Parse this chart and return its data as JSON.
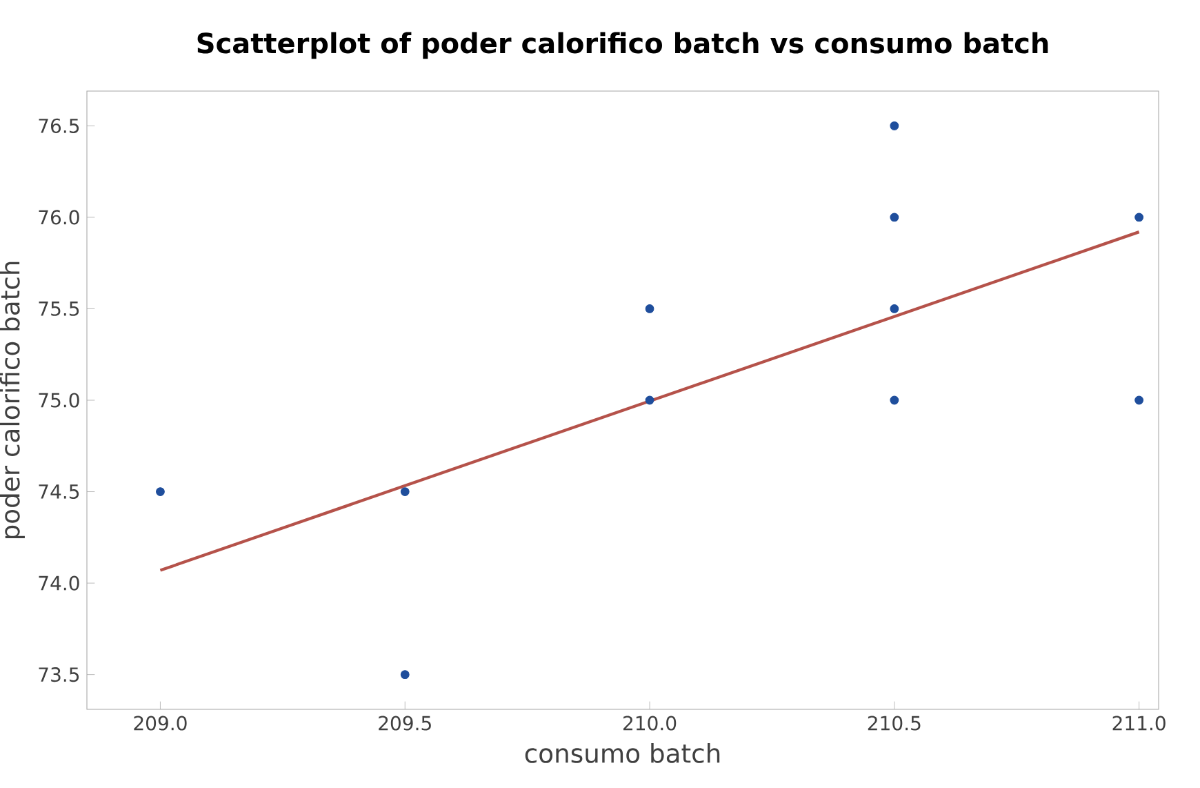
{
  "chart_data": {
    "type": "scatter",
    "title": "Scatterplot of poder calorifico batch vs consumo batch",
    "xlabel": "consumo batch",
    "ylabel": "poder calorifico batch",
    "x": [
      209.0,
      209.5,
      209.5,
      210.0,
      210.0,
      210.5,
      210.5,
      210.5,
      210.5,
      211.0,
      211.0
    ],
    "series": [
      {
        "color": "#1f4e9c",
        "values": [
          74.5,
          74.5,
          73.5,
          75.5,
          75.0,
          76.5,
          76.0,
          75.5,
          75.0,
          76.0,
          75.0
        ]
      },
      {
        "type": "line",
        "marker": "none",
        "color": "#b5524a",
        "x": [
          209.0,
          211.0
        ],
        "values": [
          74.07,
          75.92
        ]
      }
    ],
    "xlim": [
      208.85,
      211.04
    ],
    "ylim": [
      73.31,
      76.69
    ],
    "xticks": [
      {
        "value": 209.0,
        "label": "209.0"
      },
      {
        "value": 209.5,
        "label": "209.5"
      },
      {
        "value": 210.0,
        "label": "210.0"
      },
      {
        "value": 210.5,
        "label": "210.5"
      },
      {
        "value": 211.0,
        "label": "211.0"
      }
    ],
    "yticks": [
      {
        "value": 73.5,
        "label": "73.5"
      },
      {
        "value": 74.0,
        "label": "74.0"
      },
      {
        "value": 74.5,
        "label": "74.5"
      },
      {
        "value": 75.0,
        "label": "75.0"
      },
      {
        "value": 75.5,
        "label": "75.5"
      },
      {
        "value": 76.0,
        "label": "76.0"
      },
      {
        "value": 76.5,
        "label": "76.5"
      }
    ],
    "marker": "circle",
    "grid": false
  }
}
